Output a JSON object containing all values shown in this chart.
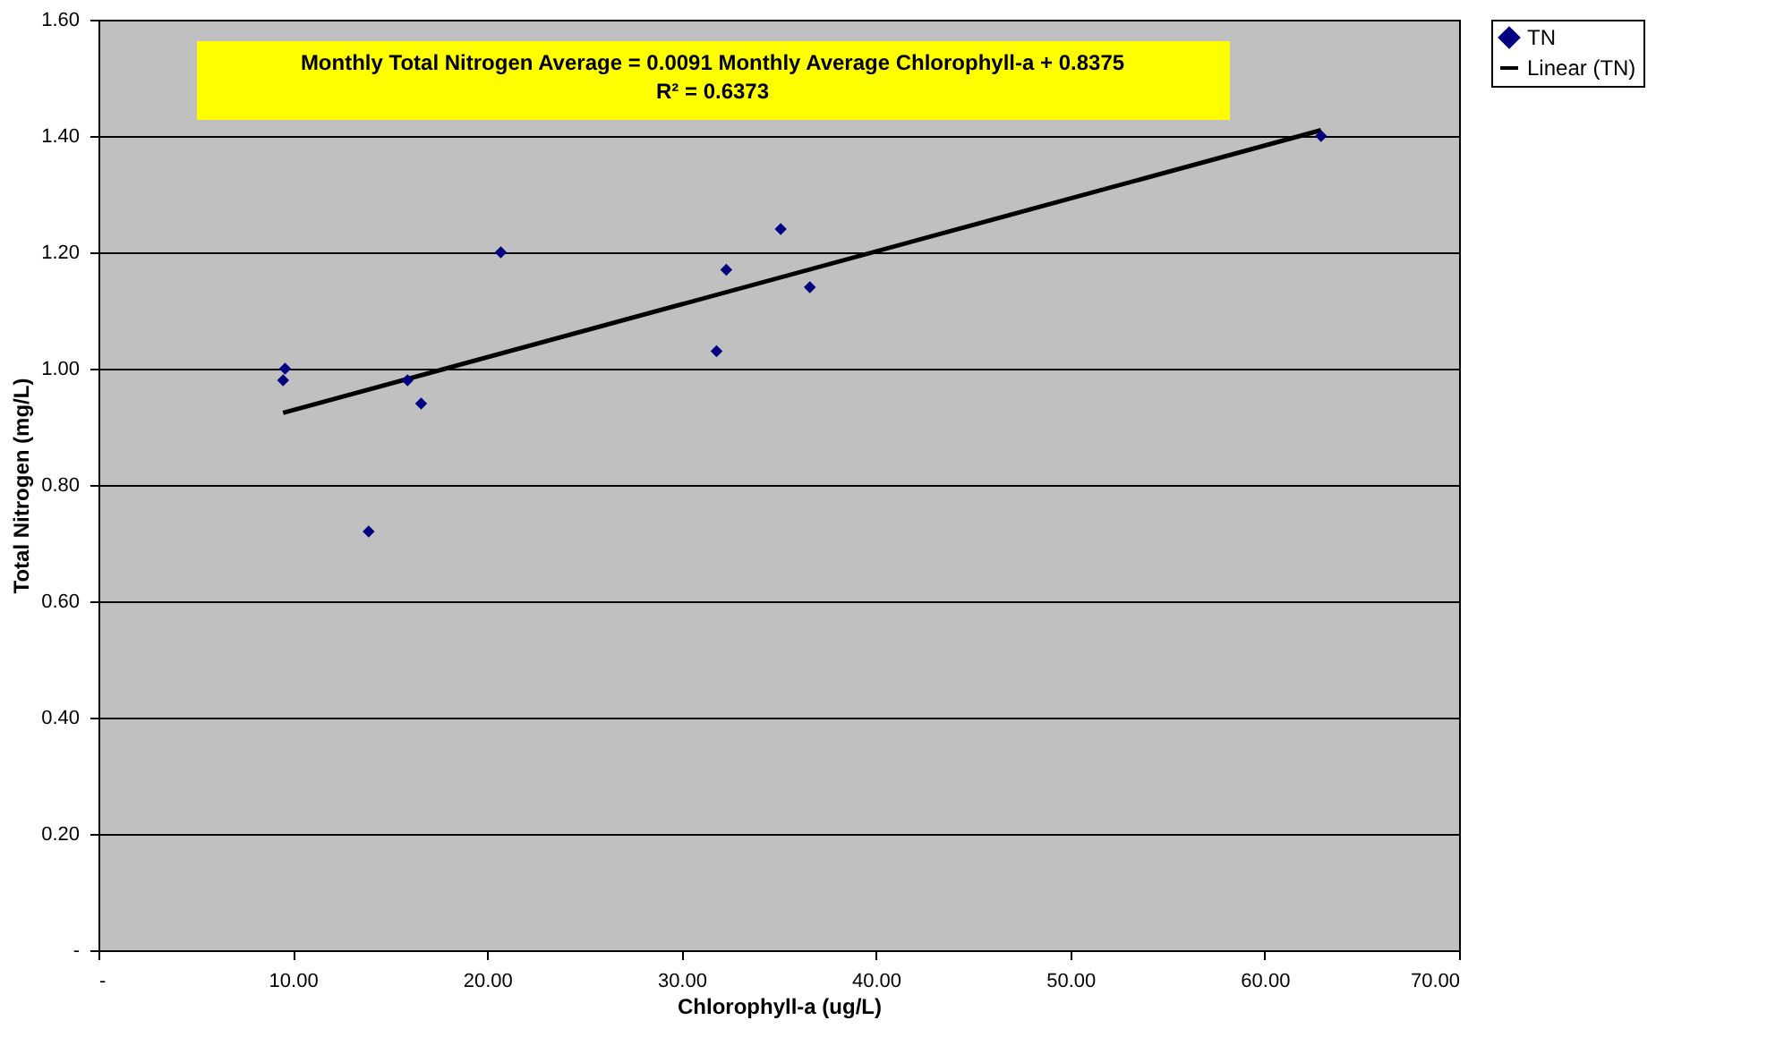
{
  "chart_data": {
    "type": "scatter",
    "xlabel": "Chlorophyll-a (ug/L)",
    "ylabel": "Total Nitrogen (mg/L)",
    "annotations": [
      "Monthly Total Nitrogen Average = 0.0091 Monthly Average Chlorophyll-a + 0.8375",
      "R² = 0.6373"
    ],
    "series": [
      {
        "name": "TN",
        "color": "#000080",
        "type": "scatter",
        "marker": "diamond",
        "x": [
          9.5,
          9.6,
          13.9,
          15.9,
          16.6,
          20.7,
          31.8,
          32.3,
          35.1,
          36.6,
          62.9
        ],
        "values": [
          0.98,
          1.0,
          0.72,
          0.98,
          0.94,
          1.2,
          1.03,
          1.17,
          1.24,
          1.14,
          1.4
        ]
      },
      {
        "name": "Linear (TN)",
        "color": "#000000",
        "type": "line",
        "marker": "none",
        "x": [
          9.5,
          62.9
        ],
        "values": [
          0.924,
          1.41
        ]
      }
    ],
    "xlim": [
      0,
      70
    ],
    "xticks": [
      {
        "value": 0,
        "label": "-"
      },
      {
        "value": 10,
        "label": "10.00"
      },
      {
        "value": 20,
        "label": "20.00"
      },
      {
        "value": 30,
        "label": "30.00"
      },
      {
        "value": 40,
        "label": "40.00"
      },
      {
        "value": 50,
        "label": "50.00"
      },
      {
        "value": 60,
        "label": "60.00"
      },
      {
        "value": 70,
        "label": "70.00"
      }
    ],
    "ylim": [
      0,
      1.6
    ],
    "yticks": [
      {
        "value": 0,
        "label": "-"
      },
      {
        "value": 0.2,
        "label": "0.20"
      },
      {
        "value": 0.4,
        "label": "0.40"
      },
      {
        "value": 0.6,
        "label": "0.60"
      },
      {
        "value": 0.8,
        "label": "0.80"
      },
      {
        "value": 1.0,
        "label": "1.00"
      },
      {
        "value": 1.2,
        "label": "1.20"
      },
      {
        "value": 1.4,
        "label": "1.40"
      },
      {
        "value": 1.6,
        "label": "1.60"
      }
    ],
    "grid": "y",
    "legend": "right"
  }
}
